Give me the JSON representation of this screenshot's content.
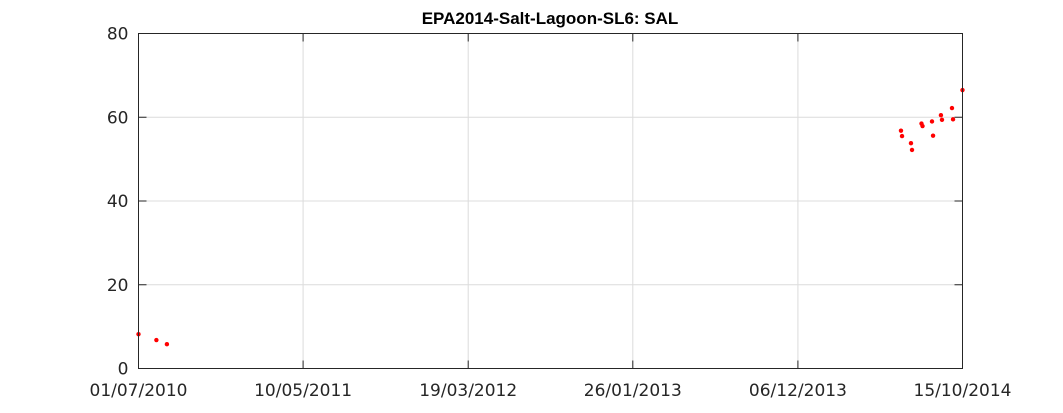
{
  "chart_data": {
    "type": "scatter",
    "title": "EPA2014-Salt-Lagoon-SL6: SAL",
    "xlabel": "",
    "ylabel": "",
    "ylim": [
      0,
      80
    ],
    "xlim": [
      "01/07/2010",
      "15/10/2014"
    ],
    "x_tick_labels": [
      "01/07/2010",
      "10/05/2011",
      "19/03/2012",
      "26/01/2013",
      "06/12/2013",
      "15/10/2014"
    ],
    "y_tick_labels": [
      "0",
      "20",
      "40",
      "60",
      "80"
    ],
    "y_ticks": [
      0,
      20,
      40,
      60,
      80
    ],
    "grid": true,
    "marker_color": "#ff0000",
    "series": [
      {
        "points": [
          {
            "x": "01/07/2010",
            "y": 8.2
          },
          {
            "x": "04/08/2010",
            "y": 6.8
          },
          {
            "x": "24/08/2010",
            "y": 5.8
          },
          {
            "x": "20/06/2014",
            "y": 56.8
          },
          {
            "x": "22/06/2014",
            "y": 55.5
          },
          {
            "x": "09/07/2014",
            "y": 53.8
          },
          {
            "x": "11/07/2014",
            "y": 52.2
          },
          {
            "x": "29/07/2014",
            "y": 58.5
          },
          {
            "x": "31/07/2014",
            "y": 57.9
          },
          {
            "x": "18/08/2014",
            "y": 59.0
          },
          {
            "x": "20/08/2014",
            "y": 55.6
          },
          {
            "x": "04/09/2014",
            "y": 60.5
          },
          {
            "x": "06/09/2014",
            "y": 59.4
          },
          {
            "x": "25/09/2014",
            "y": 62.2
          },
          {
            "x": "27/09/2014",
            "y": 59.5
          },
          {
            "x": "15/10/2014",
            "y": 66.5
          }
        ]
      }
    ]
  }
}
